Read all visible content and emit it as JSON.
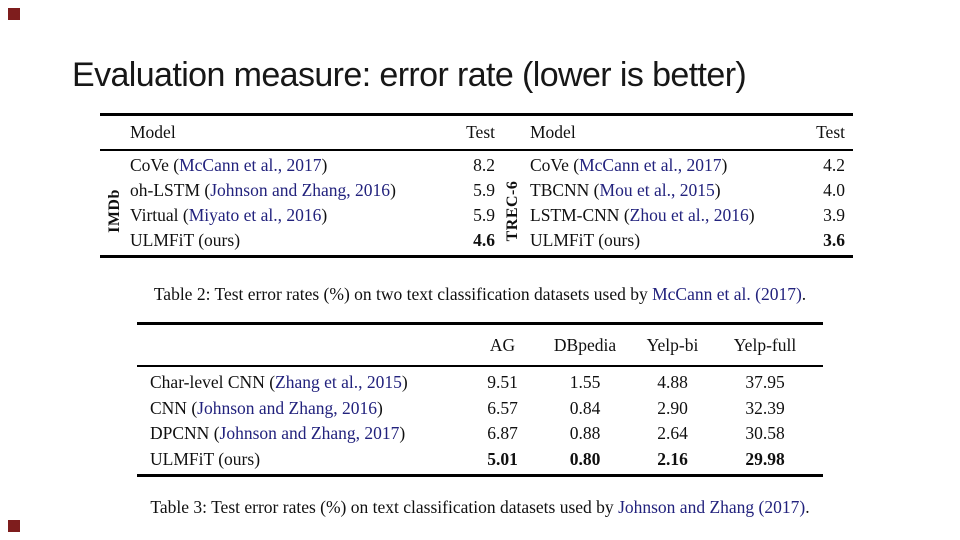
{
  "title": "Evaluation measure: error rate (lower is better)",
  "colors": {
    "citation_link": "#22227d",
    "text": "#101010",
    "corner_accent": "#7e1d1d",
    "background": "#ffffff"
  },
  "table2": {
    "header": {
      "model": "Model",
      "test": "Test"
    },
    "left": {
      "group_label": "IMDb",
      "rows": [
        {
          "pre": "CoVe (",
          "cite": "McCann et al., 2017",
          "post": ")",
          "value": "8.2"
        },
        {
          "pre": "oh-LSTM (",
          "cite": "Johnson and Zhang, 2016",
          "post": ")",
          "value": "5.9"
        },
        {
          "pre": "Virtual (",
          "cite": "Miyato et al., 2016",
          "post": ")",
          "value": "5.9"
        },
        {
          "pre": "ULMFiT (ours)",
          "cite": "",
          "post": "",
          "value": "4.6"
        }
      ]
    },
    "right": {
      "group_label": "TREC-6",
      "rows": [
        {
          "pre": "CoVe (",
          "cite": "McCann et al., 2017",
          "post": ")",
          "value": "4.2"
        },
        {
          "pre": "TBCNN (",
          "cite": "Mou et al., 2015",
          "post": ")",
          "value": "4.0"
        },
        {
          "pre": "LSTM-CNN (",
          "cite": "Zhou et al., 2016",
          "post": ")",
          "value": "3.9"
        },
        {
          "pre": "ULMFiT (ours)",
          "cite": "",
          "post": "",
          "value": "3.6"
        }
      ]
    },
    "caption": {
      "prefix": "Table 2: Test error rates (%) on two text classification datasets used by ",
      "citation": "McCann et al. (2017)",
      "suffix": "."
    }
  },
  "table3": {
    "columns": [
      "AG",
      "DBpedia",
      "Yelp-bi",
      "Yelp-full"
    ],
    "rows": [
      {
        "pre": "Char-level CNN (",
        "cite": "Zhang et al., 2015",
        "post": ")",
        "values": [
          "9.51",
          "1.55",
          "4.88",
          "37.95"
        ]
      },
      {
        "pre": "CNN (",
        "cite": "Johnson and Zhang, 2016",
        "post": ")",
        "values": [
          "6.57",
          "0.84",
          "2.90",
          "32.39"
        ]
      },
      {
        "pre": "DPCNN (",
        "cite": "Johnson and Zhang, 2017",
        "post": ")",
        "values": [
          "6.87",
          "0.88",
          "2.64",
          "30.58"
        ]
      },
      {
        "pre": "ULMFiT (ours)",
        "cite": "",
        "post": "",
        "values": [
          "5.01",
          "0.80",
          "2.16",
          "29.98"
        ]
      }
    ],
    "caption": {
      "prefix": "Table 3: Test error rates (%) on text classification datasets used by ",
      "citation": "Johnson and Zhang (2017)",
      "suffix": "."
    }
  }
}
